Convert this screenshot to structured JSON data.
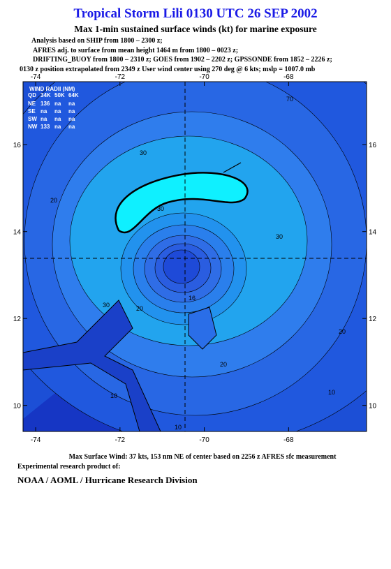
{
  "header": {
    "title": "Tropical Storm Lili 0130 UTC 26 SEP 2002",
    "subtitle": "Max 1-min sustained surface winds (kt) for marine exposure",
    "notes": [
      "Analysis based on  SHIP from 1800 – 2300 z;",
      "AFRES adj. to surface from mean height 1464 m from 1800 – 0023 z;",
      "DRIFTING_BUOY from 1800 – 2310 z;  GOES from 1902 – 2202 z;  GPSSONDE from 1852 – 2226 z;",
      "0130 z position extrapolated from 2349 z User wind center using 270 deg @ 6 kts; mslp = 1007.0 mb"
    ]
  },
  "map": {
    "xlim": [
      -74.3,
      -66.15
    ],
    "ylim": [
      9.4,
      17.45
    ],
    "xticks": [
      -74,
      -72,
      -70,
      -68
    ],
    "yticks": [
      10,
      12,
      14,
      16
    ],
    "wind_radii": {
      "title": "WIND RADII (NM)",
      "header": [
        "QD",
        "34K",
        "50K",
        "64K"
      ],
      "rows": [
        [
          "NE",
          "136",
          "na",
          "na"
        ],
        [
          "SE",
          "na",
          "na",
          "na"
        ],
        [
          "SW",
          "na",
          "na",
          "na"
        ],
        [
          "NW",
          "133",
          "na",
          "na"
        ]
      ]
    },
    "contour_labels": [
      "70",
      "30",
      "20",
      "30",
      "30",
      "30",
      "20",
      "10",
      "10",
      "20",
      "20",
      "10",
      "16"
    ]
  },
  "footer": {
    "max_wind": "Max Surface Wind: 37 kts, 153 nm NE of center based on 2256 z AFRES sfc measurement",
    "credit": "Experimental research product of:",
    "org": "NOAA / AOML / Hurricane Research Division"
  }
}
